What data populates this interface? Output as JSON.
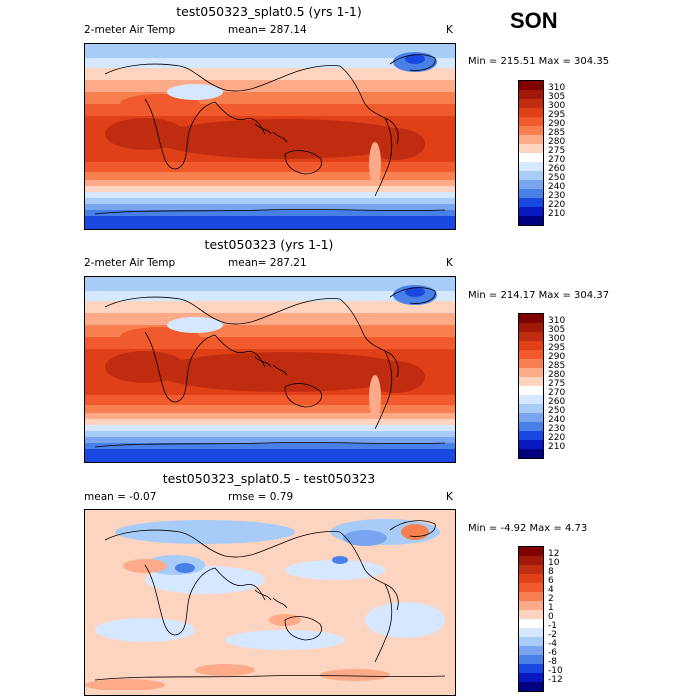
{
  "season": "SON",
  "panels": [
    {
      "title": "test050323_splat0.5 (yrs 1-1)",
      "left_label": "2-meter Air Temp",
      "mid_label": "mean= 287.14",
      "units": "K",
      "minmax": "Min = 215.51 Max = 304.35",
      "colorbar": [
        "310",
        "305",
        "300",
        "295",
        "290",
        "285",
        "280",
        "275",
        "270",
        "260",
        "250",
        "240",
        "230",
        "220",
        "210"
      ],
      "colors": [
        "#800000",
        "#a01808",
        "#c02c10",
        "#e04018",
        "#f05a2c",
        "#f88050",
        "#fcaa88",
        "#fdd4c0",
        "#ffffff",
        "#d6e8ff",
        "#a8ccf8",
        "#78a4f0",
        "#4880e8",
        "#1848e0",
        "#0818c0",
        "#000080"
      ]
    },
    {
      "title": "test050323 (yrs 1-1)",
      "left_label": "2-meter Air Temp",
      "mid_label": "mean= 287.21",
      "units": "K",
      "minmax": "Min = 214.17 Max = 304.37",
      "colorbar": [
        "310",
        "305",
        "300",
        "295",
        "290",
        "285",
        "280",
        "275",
        "270",
        "260",
        "250",
        "240",
        "230",
        "220",
        "210"
      ],
      "colors": [
        "#800000",
        "#a01808",
        "#c02c10",
        "#e04018",
        "#f05a2c",
        "#f88050",
        "#fcaa88",
        "#fdd4c0",
        "#ffffff",
        "#d6e8ff",
        "#a8ccf8",
        "#78a4f0",
        "#4880e8",
        "#1848e0",
        "#0818c0",
        "#000080"
      ]
    },
    {
      "title": "test050323_splat0.5 - test050323",
      "left_label": "mean =  -0.07",
      "mid_label": "rmse =   0.79",
      "units": "K",
      "minmax": "Min =  -4.92 Max =   4.73",
      "colorbar": [
        "12",
        "10",
        "8",
        "6",
        "4",
        "2",
        "1",
        "0",
        "-1",
        "-2",
        "-4",
        "-6",
        "-8",
        "-10",
        "-12"
      ],
      "colors": [
        "#800000",
        "#a01808",
        "#c02c10",
        "#e04018",
        "#f05a2c",
        "#f88050",
        "#fcaa88",
        "#fdd4c0",
        "#ffffff",
        "#d6e8ff",
        "#a8ccf8",
        "#78a4f0",
        "#4880e8",
        "#1848e0",
        "#0818c0",
        "#000080"
      ]
    }
  ]
}
